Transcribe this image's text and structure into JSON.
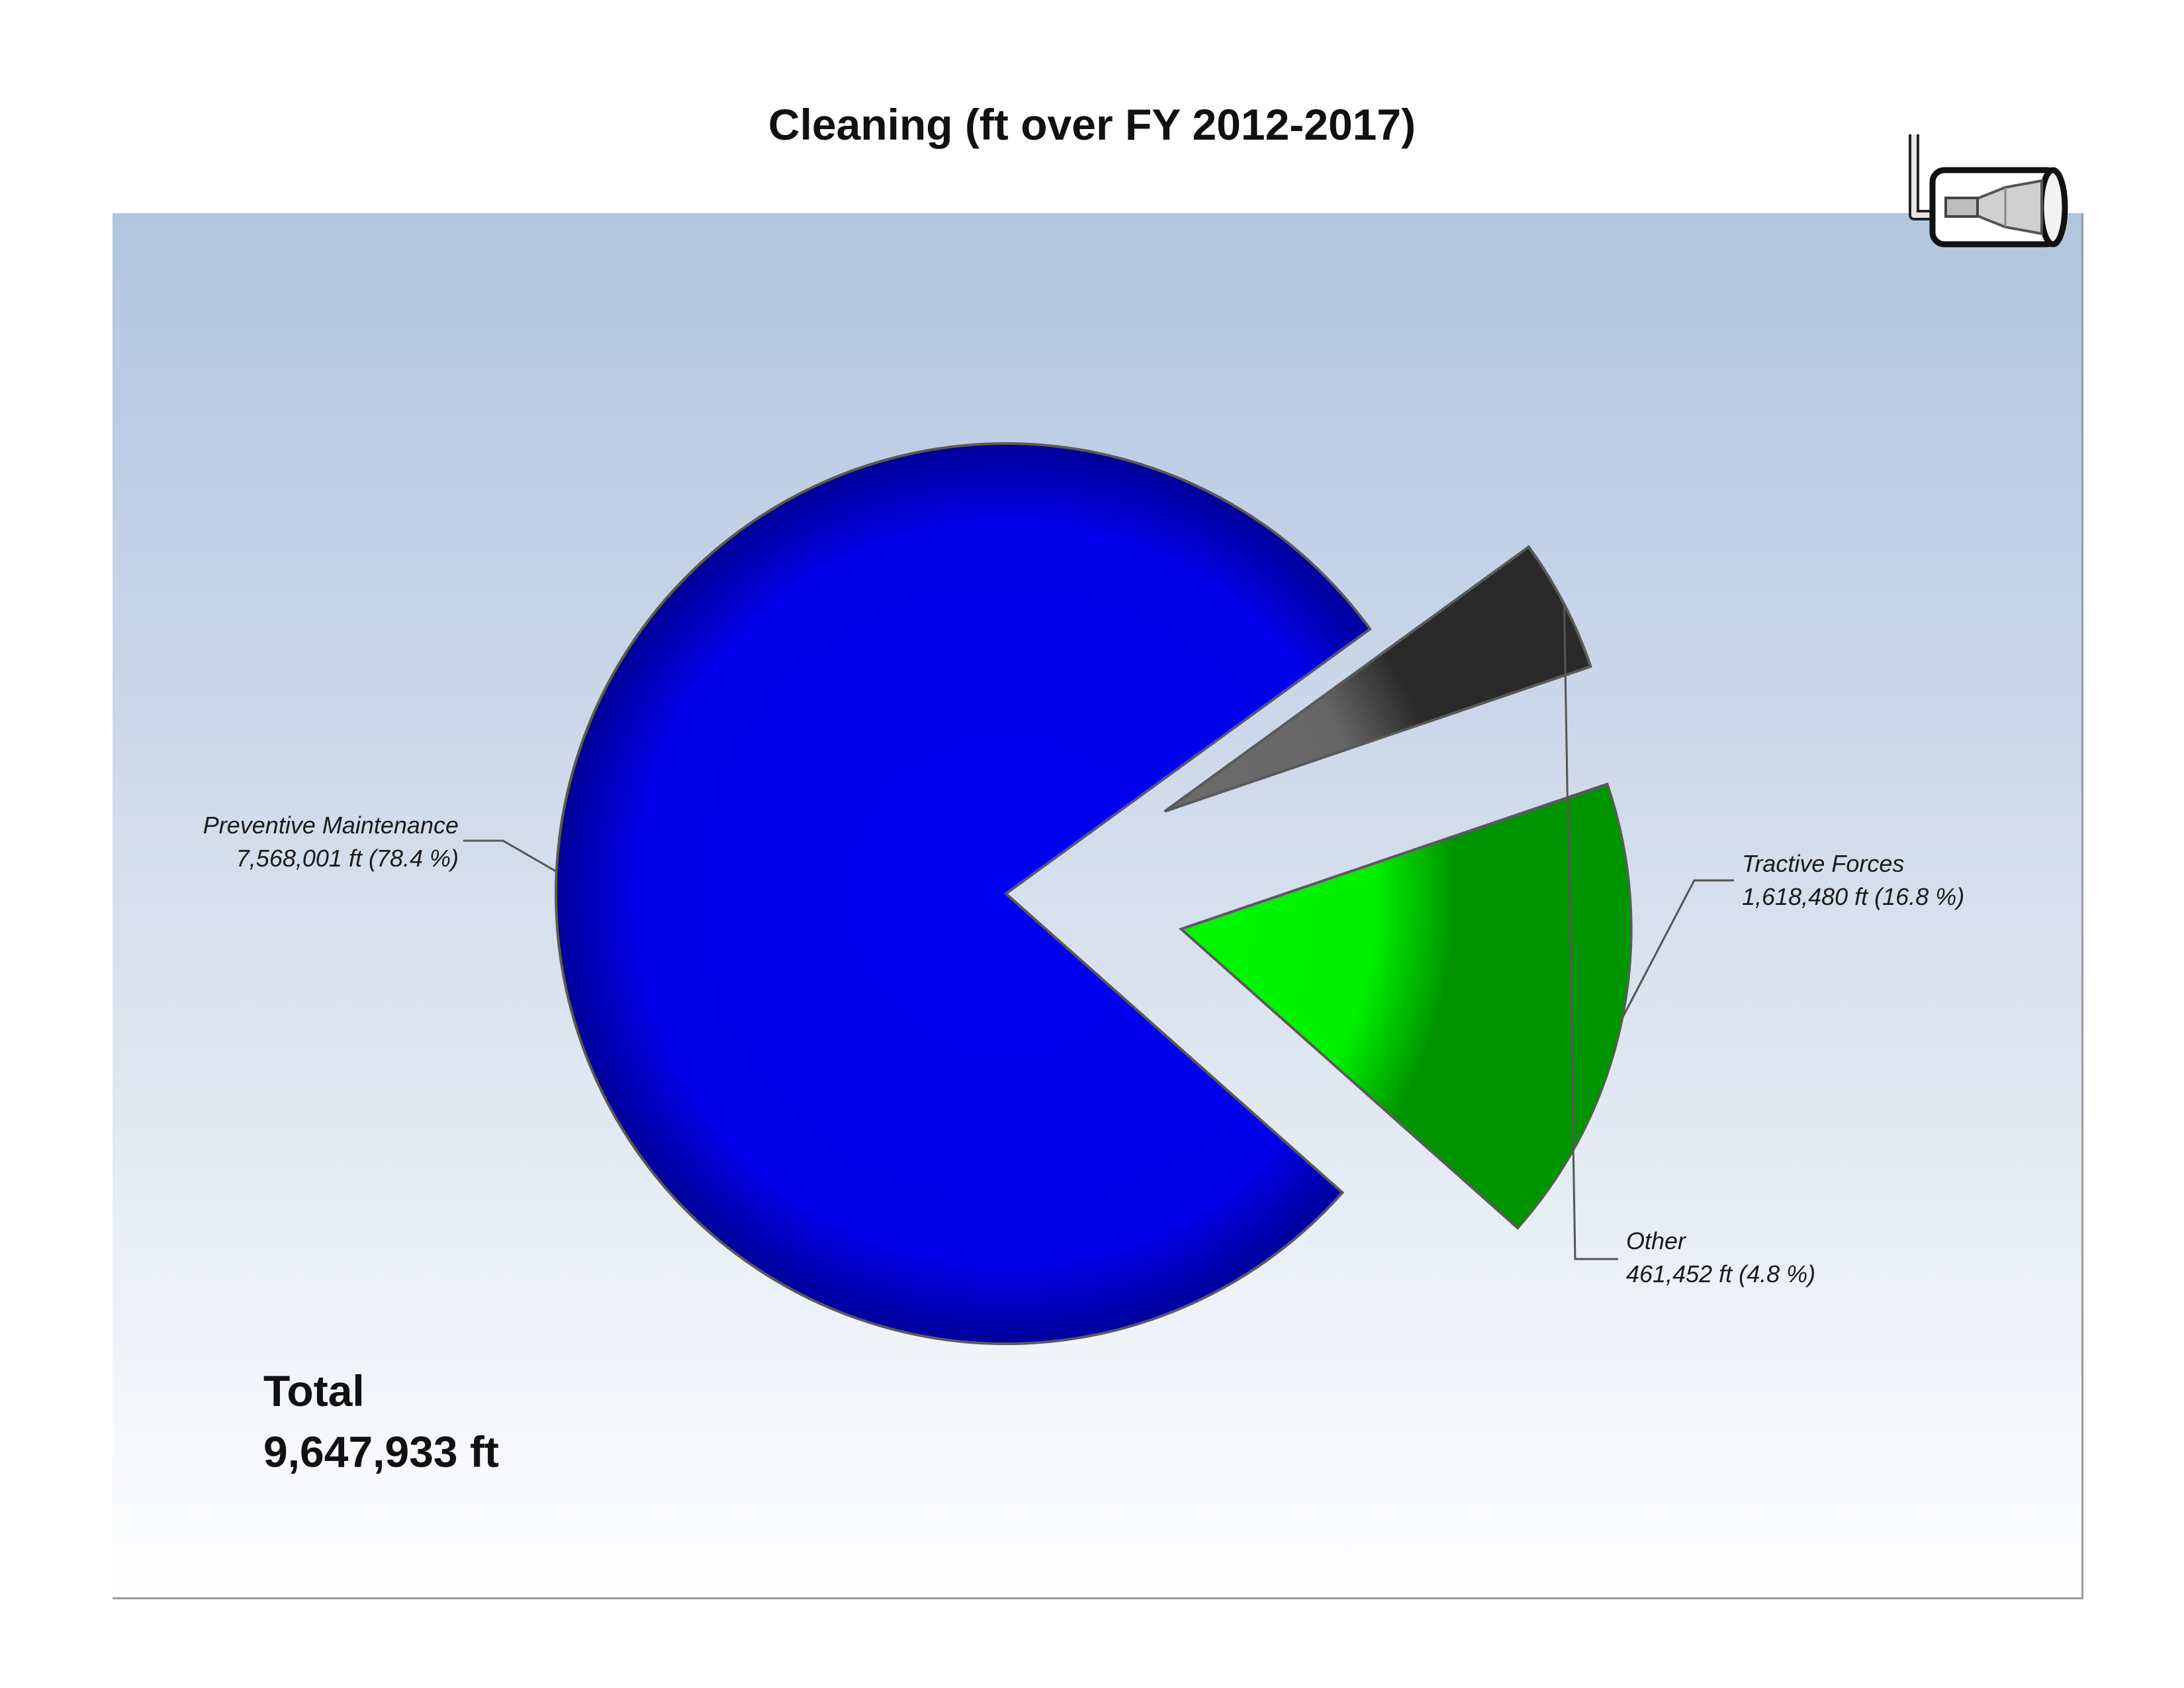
{
  "chart_data": {
    "type": "pie",
    "title": "Cleaning (ft over FY 2012-2017)",
    "slices": [
      {
        "name": "Preventive Maintenance",
        "value": 7568001,
        "value_text": "7,568,001 ft (78.4 %)",
        "color": "#0000ee",
        "exploded": false
      },
      {
        "name": "Tractive Forces",
        "value": 1618480,
        "value_text": "1,618,480 ft (16.8 %)",
        "color": "#00ee00",
        "exploded": true
      },
      {
        "name": "Other",
        "value": 461452,
        "value_text": "461,452 ft (4.8 %)",
        "color": "#666666",
        "exploded": true
      }
    ],
    "total": {
      "label": "Total",
      "value_text": "9,647,933 ft"
    },
    "legend": "none"
  },
  "logo": {
    "icon": "pipe-camera-icon"
  }
}
